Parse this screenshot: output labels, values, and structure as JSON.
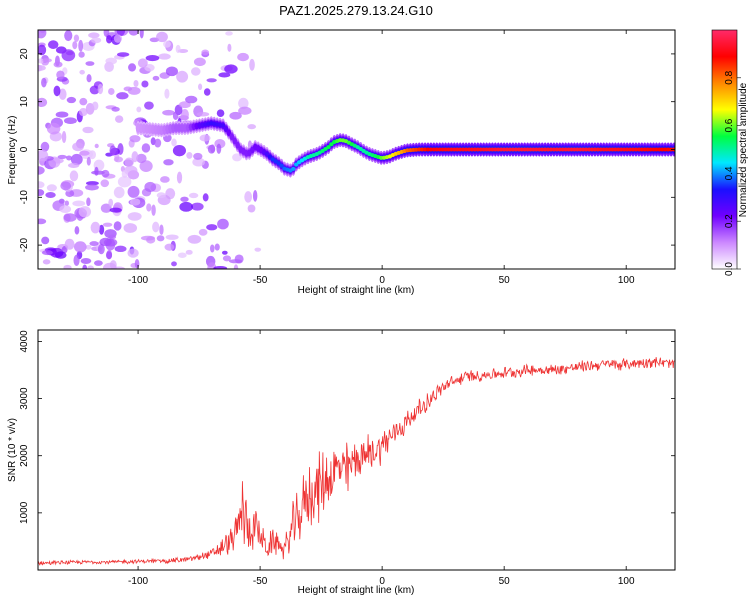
{
  "figure": {
    "title": "PAZ1.2025.279.13.24.G10"
  },
  "chart_data": [
    {
      "type": "heatmap",
      "name": "spectrogram",
      "xlabel": "Height of straight line (km)",
      "ylabel": "Frequency (Hz)",
      "xlim": [
        -141,
        120
      ],
      "ylim": [
        -25,
        25
      ],
      "xticks": [
        -100,
        -50,
        0,
        50,
        100
      ],
      "yticks": [
        -20,
        -10,
        0,
        10,
        20
      ],
      "colorbar": {
        "label": "Normalized spectral amplitude",
        "range": [
          0,
          1
        ],
        "ticks": [
          0.0,
          0.2,
          0.4,
          0.6,
          0.8
        ],
        "colormap": [
          "#ffffff",
          "#cc88ff",
          "#7000ff",
          "#1a10ff",
          "#00e8ff",
          "#00ff40",
          "#ffff00",
          "#ff8800",
          "#ff0000",
          "#ff2a6a"
        ]
      },
      "ridge": {
        "x": [
          -100,
          -90,
          -85,
          -80,
          -75,
          -70,
          -65,
          -62,
          -58,
          -55,
          -52,
          -50,
          -47,
          -45,
          -42,
          -40,
          -37,
          -35,
          -32,
          -30,
          -27,
          -25,
          -22,
          -20,
          -17,
          -15,
          -12,
          -10,
          -7,
          -5,
          -2,
          0,
          3,
          5,
          8,
          10,
          15,
          20,
          30,
          40,
          50,
          60,
          70,
          80,
          90,
          100,
          110,
          120
        ],
        "y": [
          4.5,
          4.0,
          4.5,
          4.5,
          5.0,
          5.5,
          5.0,
          3.0,
          0.0,
          -1.0,
          0.5,
          0.0,
          -1.0,
          -2.0,
          -3.0,
          -4.0,
          -4.5,
          -3.0,
          -2.0,
          -1.5,
          -1.0,
          -0.5,
          0.5,
          1.5,
          2.0,
          1.8,
          1.0,
          0.5,
          -0.5,
          -1.0,
          -1.5,
          -1.8,
          -1.5,
          -1.0,
          -0.5,
          -0.2,
          0.0,
          0.0,
          0.0,
          0.0,
          0.0,
          0.0,
          0.0,
          0.0,
          0.0,
          0.0,
          0.0,
          0.0
        ],
        "amplitude": [
          0.1,
          0.12,
          0.15,
          0.15,
          0.25,
          0.3,
          0.28,
          0.2,
          0.2,
          0.2,
          0.22,
          0.22,
          0.28,
          0.35,
          0.35,
          0.38,
          0.4,
          0.42,
          0.45,
          0.5,
          0.5,
          0.52,
          0.55,
          0.55,
          0.6,
          0.6,
          0.55,
          0.5,
          0.5,
          0.52,
          0.55,
          0.6,
          0.65,
          0.7,
          0.75,
          0.8,
          0.85,
          0.9,
          0.92,
          0.93,
          0.95,
          0.95,
          0.94,
          0.95,
          0.93,
          0.92,
          0.9,
          0.88
        ]
      },
      "noise_region": {
        "x_start": -141,
        "x_end": -50,
        "level": 0.12
      }
    },
    {
      "type": "line",
      "name": "snr",
      "xlabel": "Height of straight line (km)",
      "ylabel": "SNR (10 * v/v)",
      "xlim": [
        -141,
        120
      ],
      "ylim": [
        0,
        4200
      ],
      "xticks": [
        -100,
        -50,
        0,
        50,
        100
      ],
      "yticks": [
        1000,
        2000,
        3000,
        4000
      ],
      "series": [
        {
          "name": "SNR",
          "color": "#ee3333",
          "x": [
            -141,
            -130,
            -120,
            -110,
            -100,
            -90,
            -80,
            -75,
            -70,
            -65,
            -60,
            -57,
            -55,
            -52,
            -50,
            -47,
            -45,
            -42,
            -40,
            -37,
            -35,
            -32,
            -30,
            -27,
            -25,
            -22,
            -20,
            -17,
            -15,
            -12,
            -10,
            -7,
            -5,
            -2,
            0,
            3,
            5,
            8,
            10,
            15,
            20,
            25,
            30,
            35,
            40,
            50,
            60,
            70,
            80,
            90,
            95,
            100,
            110,
            120
          ],
          "y": [
            120,
            130,
            140,
            140,
            150,
            160,
            180,
            230,
            280,
            400,
            600,
            1100,
            700,
            800,
            600,
            350,
            500,
            450,
            350,
            700,
            800,
            1200,
            1300,
            1400,
            1500,
            1600,
            1700,
            1800,
            1700,
            1900,
            1950,
            2000,
            2050,
            2100,
            2200,
            2300,
            2400,
            2500,
            2600,
            2800,
            3000,
            3200,
            3300,
            3400,
            3400,
            3450,
            3500,
            3500,
            3550,
            3600,
            3600,
            3600,
            3650,
            3600
          ],
          "spread": [
            40,
            40,
            40,
            40,
            40,
            50,
            60,
            80,
            100,
            200,
            400,
            800,
            500,
            500,
            300,
            200,
            300,
            250,
            200,
            500,
            600,
            600,
            700,
            700,
            700,
            600,
            600,
            700,
            600,
            500,
            450,
            400,
            400,
            350,
            350,
            300,
            300,
            250,
            250,
            200,
            180,
            150,
            150,
            120,
            120,
            120,
            120,
            120,
            120,
            120,
            120,
            120,
            120,
            120
          ]
        }
      ]
    }
  ]
}
